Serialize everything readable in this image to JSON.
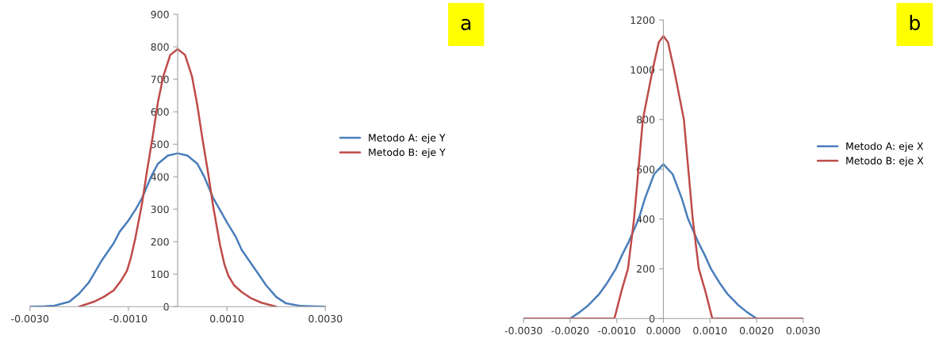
{
  "chart_data": [
    {
      "type": "line",
      "annotations": [
        "a"
      ],
      "xlim": [
        -0.003,
        0.003
      ],
      "ylim": [
        0,
        900
      ],
      "xticks": [
        {
          "value": -0.003,
          "label": "-0.0030"
        },
        {
          "value": -0.001,
          "label": "-0.0010"
        },
        {
          "value": 0.001,
          "label": "0.0010"
        },
        {
          "value": 0.003,
          "label": "0.0030"
        }
      ],
      "yticks": [
        0,
        100,
        200,
        300,
        400,
        500,
        600,
        700,
        800,
        900
      ],
      "grid": false,
      "legend": "right",
      "marker": "none",
      "line_style": "solid",
      "series": [
        {
          "name": "Metodo A: eje Y",
          "color": "#4a7ebb",
          "x": [
            -0.003,
            -0.0027,
            -0.0025,
            -0.0022,
            -0.002,
            -0.0018,
            -0.00155,
            -0.0013,
            -0.00118,
            -0.001,
            -0.00085,
            -0.00072,
            -0.00054,
            -0.0004,
            -0.0002,
            0,
            0.0002,
            0.0004,
            0.00054,
            0.00072,
            0.00085,
            0.001,
            0.00118,
            0.0013,
            0.00155,
            0.0018,
            0.002,
            0.0022,
            0.0025,
            0.0027,
            0.003
          ],
          "values": [
            0,
            1,
            3,
            15,
            40,
            75,
            140,
            195,
            230,
            265,
            300,
            335,
            400,
            440,
            465,
            472,
            465,
            440,
            400,
            335,
            300,
            260,
            215,
            175,
            120,
            65,
            30,
            10,
            2,
            1,
            0
          ]
        },
        {
          "name": "Metodo B: eje Y",
          "color": "#be4b48",
          "x": [
            -0.002,
            -0.0017,
            -0.0015,
            -0.0013,
            -0.00115,
            -0.00103,
            -0.00095,
            -0.00086,
            -0.00072,
            -0.00062,
            -0.0005,
            -0.0004,
            -0.00029,
            -0.00015,
            0,
            0.00015,
            0.00029,
            0.0004,
            0.0005,
            0.00062,
            0.00072,
            0.00086,
            0.00095,
            0.00103,
            0.00115,
            0.0013,
            0.0015,
            0.0017,
            0.002
          ],
          "values": [
            0,
            15,
            30,
            50,
            80,
            110,
            150,
            210,
            320,
            420,
            530,
            630,
            710,
            775,
            793,
            775,
            710,
            620,
            520,
            410,
            310,
            190,
            130,
            95,
            65,
            45,
            25,
            12,
            0
          ]
        }
      ]
    },
    {
      "type": "line",
      "annotations": [
        "b"
      ],
      "xlim": [
        -0.003,
        0.003
      ],
      "ylim": [
        0,
        1200
      ],
      "xticks": [
        {
          "value": -0.003,
          "label": "-0.0030"
        },
        {
          "value": -0.002,
          "label": "-0.0020"
        },
        {
          "value": -0.001,
          "label": "-0.0010"
        },
        {
          "value": 0,
          "label": "0.0000"
        },
        {
          "value": 0.001,
          "label": "0.0010"
        },
        {
          "value": 0.002,
          "label": "0.0020"
        },
        {
          "value": 0.003,
          "label": "0.0030"
        }
      ],
      "yticks": [
        0,
        200,
        400,
        600,
        800,
        1000,
        1200
      ],
      "grid": false,
      "legend": "right",
      "marker": "none",
      "line_style": "solid",
      "series": [
        {
          "name": "Metodo A: eje X",
          "color": "#4a7ebb",
          "x": [
            -0.003,
            -0.0025,
            -0.002,
            -0.0018,
            -0.0016,
            -0.00137,
            -0.0012,
            -0.00102,
            -0.0009,
            -0.00074,
            -0.00053,
            -0.0004,
            -0.0002,
            0,
            0.0002,
            0.0004,
            0.00053,
            0.00074,
            0.0009,
            0.00102,
            0.0012,
            0.00137,
            0.0016,
            0.0018,
            0.002,
            0.0025,
            0.003
          ],
          "values": [
            0,
            0,
            0,
            25,
            55,
            100,
            145,
            200,
            250,
            310,
            400,
            480,
            580,
            620,
            580,
            480,
            400,
            310,
            250,
            200,
            145,
            100,
            55,
            25,
            0,
            0,
            0
          ]
        },
        {
          "name": "Metodo B: eje X",
          "color": "#be4b48",
          "x": [
            -0.003,
            -0.002,
            -0.00105,
            -0.0009,
            -0.00076,
            -0.00063,
            -0.00044,
            -0.00023,
            -0.0001,
            0,
            0.0001,
            0.00023,
            0.00044,
            0.00063,
            0.00076,
            0.0009,
            0.00105,
            0.002,
            0.003
          ],
          "values": [
            0,
            0,
            0,
            110,
            200,
            400,
            800,
            1000,
            1110,
            1135,
            1110,
            1000,
            800,
            400,
            200,
            110,
            0,
            0,
            0
          ]
        }
      ]
    }
  ]
}
